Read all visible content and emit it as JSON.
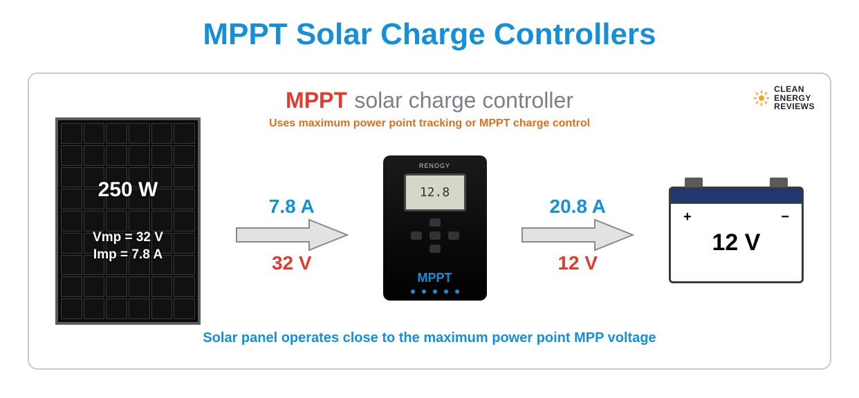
{
  "colors": {
    "title_blue": "#1590d8",
    "gray_text": "#7b7f86",
    "red": "#e23b2e",
    "orange": "#d8701f",
    "arrow_fill": "#e2e2e2",
    "arrow_stroke": "#8a8a8a",
    "battery_stripe": "#20386b"
  },
  "title": {
    "accent": "MPPT",
    "rest": " Solar Charge Controllers"
  },
  "logo": {
    "line1": "CLEAN",
    "line2": "ENERGY",
    "line3": "REVIEWS"
  },
  "header": {
    "accent": "MPPT",
    "rest": "solar charge controller",
    "subtitle": "Uses maximum power point tracking or MPPT charge control"
  },
  "panel": {
    "wattage": "250 W",
    "vmp": "Vmp = 32 V",
    "imp": "Imp  = 7.8 A",
    "cols": 6,
    "rows": 9
  },
  "arrow1": {
    "top": "7.8 A",
    "bottom": "32 V"
  },
  "controller": {
    "brand": "RENOGY",
    "lcd": "12.8",
    "label": "MPPT",
    "leds": 5
  },
  "arrow2": {
    "top": "20.8 A",
    "bottom": "12 V"
  },
  "battery": {
    "plus": "+",
    "minus": "−",
    "voltage": "12 V"
  },
  "footer": "Solar panel operates close to the maximum power point MPP voltage"
}
